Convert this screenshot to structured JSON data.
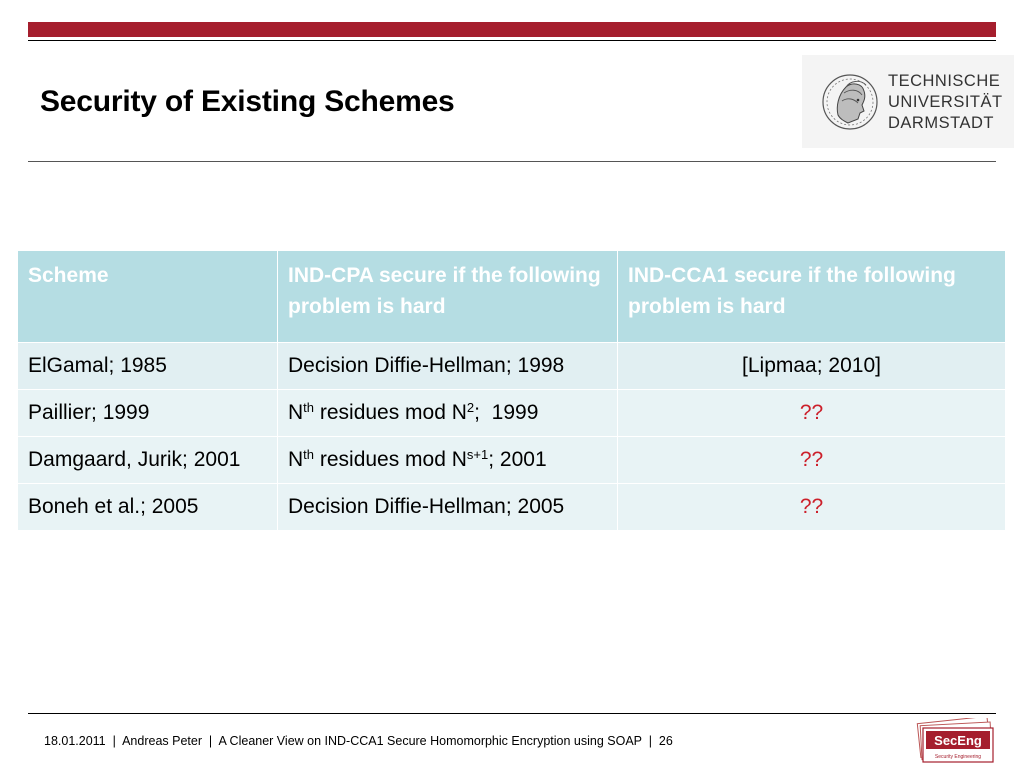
{
  "slide": {
    "title": "Security of Existing Schemes"
  },
  "logo": {
    "line1": "TECHNISCHE",
    "line2": "UNIVERSITÄT",
    "line3": "DARMSTADT"
  },
  "table": {
    "headers": [
      "Scheme",
      "IND-CPA secure if the following problem is hard",
      "IND-CCA1 secure if the following problem is hard"
    ],
    "rows": [
      {
        "scheme": "ElGamal; 1985",
        "cpa": "Decision Diffie-Hellman; 1998",
        "cca1": "[Lipmaa; 2010]"
      },
      {
        "scheme": "Paillier; 1999",
        "cpa_base": "N",
        "cpa_sup": "th",
        "cpa_mid": " residues mod N",
        "cpa_sup2": "2",
        "cpa_end": ";  1999",
        "cca1": "??"
      },
      {
        "scheme": "Damgaard, Jurik; 2001",
        "cpa_base": "N",
        "cpa_sup": "th",
        "cpa_mid": " residues mod N",
        "cpa_sup2": "s+1",
        "cpa_end": "; 2001",
        "cca1": "??"
      },
      {
        "scheme": "Boneh et al.; 2005",
        "cpa": "Decision Diffie-Hellman; 2005",
        "cca1": "??"
      }
    ]
  },
  "footer": {
    "text": "18.01.2011  |  Andreas Peter  |  A Cleaner View on IND-CCA1 Secure Homomorphic Encryption using SOAP  |  26"
  },
  "seceng": {
    "name": "SecEng",
    "tagline": "Security Engineering"
  },
  "colors": {
    "accent_bar": "#a51e2d",
    "header_bg": "#b5dde3",
    "row_bg": "#e8f3f5",
    "question_red": "#cc1f2a"
  }
}
